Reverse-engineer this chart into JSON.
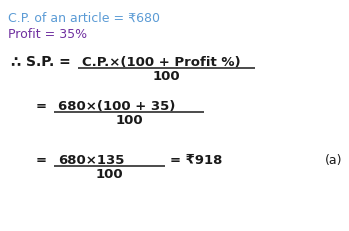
{
  "bg_color": "#ffffff",
  "line1_text": "C.P. of an article = ₹680",
  "line1_color": "#5b9bd5",
  "line2_text": "Profit = 35%",
  "line2_color": "#7030a0",
  "therefore_symbol": "∴",
  "formula_num": "C.P.×(100 + Profit %)",
  "formula_den": "100",
  "step2_num": "680×(100 + 35)",
  "step2_den": "100",
  "step3_num": "680×135",
  "step3_den": "100",
  "step3_result": "= ₹918",
  "answer_label": "(a)",
  "text_color": "#1a1a1a",
  "fs_header": 9.0,
  "fs_body": 9.5
}
